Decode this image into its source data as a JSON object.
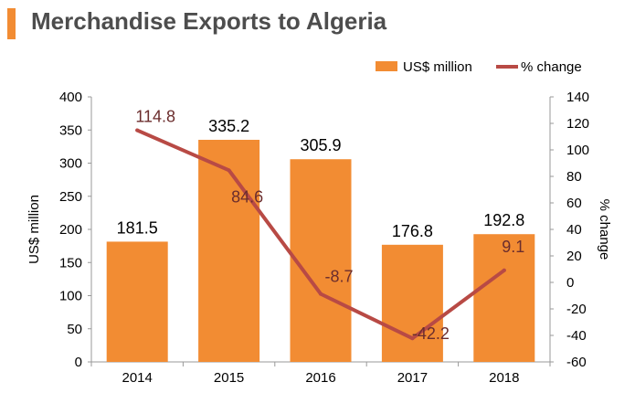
{
  "title": "Merchandise Exports to Algeria",
  "colors": {
    "bar": "#F28C33",
    "line": "#B84A45",
    "accent": "#F28C33",
    "title": "#4d4d4d",
    "axis": "#999999",
    "line_label": "#6b2d2d"
  },
  "chart_data": {
    "type": "bar",
    "categories": [
      "2014",
      "2015",
      "2016",
      "2017",
      "2018"
    ],
    "series": [
      {
        "name": "US$ million",
        "type": "bar",
        "axis": "left",
        "values": [
          181.5,
          335.2,
          305.9,
          176.8,
          192.8
        ],
        "labels": [
          "181.5",
          "335.2",
          "305.9",
          "176.8",
          "192.8"
        ]
      },
      {
        "name": "% change",
        "type": "line",
        "axis": "right",
        "values": [
          114.8,
          84.6,
          -8.7,
          -42.2,
          9.1
        ],
        "labels": [
          "114.8",
          "84.6",
          "-8.7",
          "-42.2",
          "9.1"
        ]
      }
    ],
    "ylabel": "US$ million",
    "y2label": "% change",
    "ylim": [
      0,
      400
    ],
    "y2lim": [
      -60,
      140
    ],
    "yticks": [
      "0",
      "50",
      "100",
      "150",
      "200",
      "250",
      "300",
      "350",
      "400"
    ],
    "y2ticks": [
      "-60",
      "-40",
      "-20",
      "0",
      "20",
      "40",
      "60",
      "80",
      "100",
      "120",
      "140"
    ],
    "legend_position": "top-right",
    "grid": false
  }
}
